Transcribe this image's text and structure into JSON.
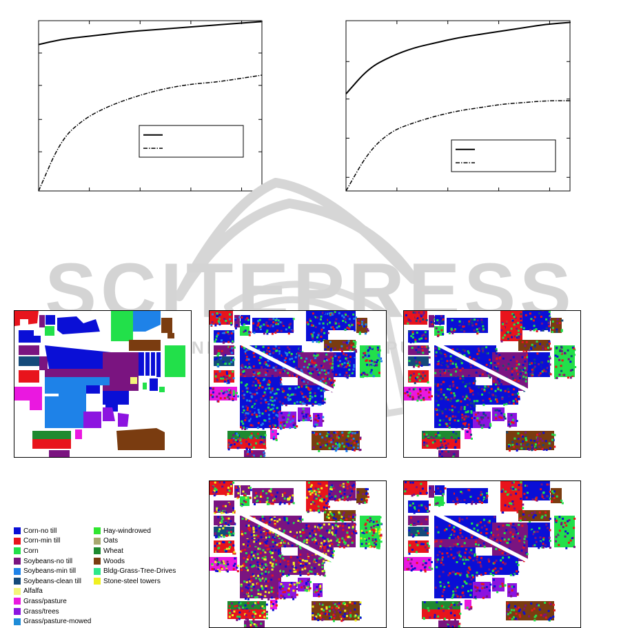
{
  "chart_data": [
    {
      "type": "line",
      "title": "",
      "xlabel": "",
      "ylabel": "",
      "grid": false,
      "legend_placement": "bottom-right",
      "x": [
        0,
        0.1,
        0.2,
        0.3,
        0.4,
        0.5,
        0.6,
        0.7,
        0.8,
        0.9,
        1.0
      ],
      "xlim": [
        0,
        1
      ],
      "ylim": [
        0,
        1
      ],
      "series": [
        {
          "style": "solid",
          "values": [
            0.86,
            0.89,
            0.905,
            0.92,
            0.935,
            0.945,
            0.955,
            0.965,
            0.975,
            0.985,
            0.995
          ]
        },
        {
          "style": "dash-dot",
          "values": [
            0.0,
            0.3,
            0.42,
            0.49,
            0.54,
            0.58,
            0.61,
            0.63,
            0.64,
            0.66,
            0.68
          ]
        }
      ]
    },
    {
      "type": "line",
      "title": "",
      "xlabel": "",
      "ylabel": "",
      "grid": false,
      "legend_placement": "bottom-right",
      "x": [
        0,
        0.1,
        0.2,
        0.3,
        0.4,
        0.5,
        0.6,
        0.7,
        0.8,
        0.9,
        1.0
      ],
      "xlim": [
        0,
        1
      ],
      "ylim": [
        0,
        1
      ],
      "series": [
        {
          "style": "solid",
          "values": [
            0.57,
            0.72,
            0.79,
            0.84,
            0.87,
            0.9,
            0.92,
            0.94,
            0.96,
            0.98,
            0.99
          ]
        },
        {
          "style": "dash-dot",
          "values": [
            0.0,
            0.23,
            0.35,
            0.4,
            0.44,
            0.47,
            0.49,
            0.51,
            0.52,
            0.53,
            0.53
          ]
        }
      ]
    }
  ],
  "legend": {
    "items": [
      {
        "label": "Corn-no till",
        "color": "#0a0fd6"
      },
      {
        "label": "Corn-min till",
        "color": "#e8141c"
      },
      {
        "label": "Corn",
        "color": "#22e04a"
      },
      {
        "label": "Soybeans-no till",
        "color": "#7a1480"
      },
      {
        "label": "Soybeans-min till",
        "color": "#1e82e8"
      },
      {
        "label": "Soybeans-clean till",
        "color": "#144a7a"
      },
      {
        "label": "Alfalfa",
        "color": "#f4f47a"
      },
      {
        "label": "Grass/pasture",
        "color": "#ea18e0"
      },
      {
        "label": "Grass/trees",
        "color": "#8c14e0"
      },
      {
        "label": "Grass/pasture-mowed",
        "color": "#1e8cd8"
      },
      {
        "label": "Hay-windrowed",
        "color": "#30e630"
      },
      {
        "label": "Oats",
        "color": "#a8a870"
      },
      {
        "label": "Wheat",
        "color": "#1e8a30"
      },
      {
        "label": "Woods",
        "color": "#7a3c10"
      },
      {
        "label": "Bldg-Grass-Tree-Drives",
        "color": "#2ee88a"
      },
      {
        "label": "Stone-steel towers",
        "color": "#f0f020"
      }
    ]
  },
  "watermark": {
    "text": "SCITEPRESS",
    "subtext": "SCIENCE AND TECHNOLOGY PUBLICATIONS",
    "color": "#d0d0d0"
  }
}
